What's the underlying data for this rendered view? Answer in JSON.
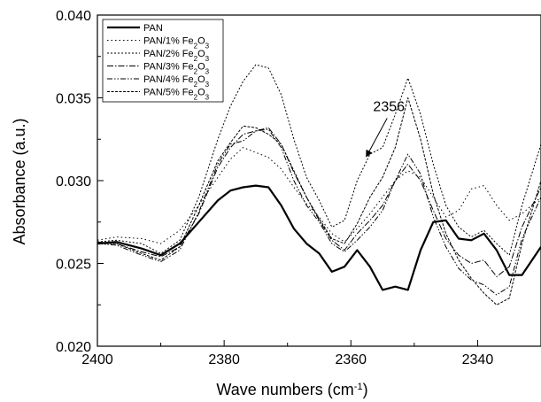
{
  "chart_data": {
    "type": "line",
    "title": "",
    "xlabel": "Wave numbers (cm",
    "xlabel_sup": "-1",
    "xlabel_tail": ")",
    "ylabel": "Absorbance (a.u.)",
    "xlim": [
      2400,
      2330
    ],
    "ylim": [
      0.02,
      0.04
    ],
    "x_ticks": [
      2400,
      2380,
      2360,
      2340
    ],
    "x_tick_labels": [
      "2400",
      "2380",
      "2360",
      "2340"
    ],
    "y_ticks": [
      0.02,
      0.025,
      0.03,
      0.035,
      0.04
    ],
    "y_tick_labels": [
      "0.020",
      "0.025",
      "0.030",
      "0.035",
      "0.040"
    ],
    "grid": false,
    "legend_position": "top-left",
    "series": [
      {
        "name": "PAN",
        "label_base": "PAN",
        "label_sub": "",
        "label_mid": "",
        "label_sub2": "",
        "color": "#000000",
        "dash": "",
        "width": 2.2,
        "x": [
          2400,
          2397,
          2393,
          2390,
          2387,
          2384,
          2381,
          2379,
          2377,
          2375,
          2373,
          2371,
          2369,
          2367,
          2365,
          2363,
          2361,
          2359,
          2357,
          2355,
          2353,
          2351,
          2349,
          2347,
          2345,
          2343,
          2341,
          2339,
          2337,
          2335,
          2333,
          2330
        ],
        "y": [
          0.0262,
          0.0263,
          0.0259,
          0.0255,
          0.0262,
          0.0275,
          0.0288,
          0.0294,
          0.0296,
          0.0297,
          0.0296,
          0.0285,
          0.0271,
          0.0262,
          0.0256,
          0.0245,
          0.0248,
          0.0258,
          0.0248,
          0.0234,
          0.0236,
          0.0234,
          0.0258,
          0.0275,
          0.0276,
          0.0265,
          0.0264,
          0.0268,
          0.0258,
          0.0243,
          0.0243,
          0.026
        ]
      },
      {
        "name": "PAN/1% Fe2O3",
        "label_base": "PAN/1% Fe",
        "label_sub": "2",
        "label_mid": "O",
        "label_sub2": "3",
        "color": "#000000",
        "dash": "1.5,3",
        "width": 1,
        "x": [
          2400,
          2397,
          2393,
          2390,
          2387,
          2384,
          2381,
          2379,
          2377,
          2375,
          2373,
          2371,
          2369,
          2367,
          2365,
          2363,
          2361,
          2359,
          2357,
          2355,
          2353,
          2351,
          2349,
          2347,
          2345,
          2343,
          2341,
          2339,
          2337,
          2335,
          2333,
          2330
        ],
        "y": [
          0.0264,
          0.0266,
          0.0265,
          0.0262,
          0.027,
          0.0285,
          0.0302,
          0.0313,
          0.032,
          0.0317,
          0.0314,
          0.0307,
          0.0296,
          0.0286,
          0.0278,
          0.0268,
          0.0263,
          0.0271,
          0.028,
          0.029,
          0.03,
          0.0306,
          0.0302,
          0.029,
          0.0278,
          0.0282,
          0.0295,
          0.0297,
          0.0285,
          0.0276,
          0.028,
          0.029
        ]
      },
      {
        "name": "PAN/2% Fe2O3",
        "label_base": "PAN/2% Fe",
        "label_sub": "2",
        "label_mid": "O",
        "label_sub2": "3",
        "color": "#000000",
        "dash": "2,2",
        "width": 1,
        "x": [
          2400,
          2397,
          2393,
          2390,
          2387,
          2384,
          2381,
          2379,
          2377,
          2375,
          2373,
          2371,
          2369,
          2367,
          2365,
          2363,
          2361,
          2359,
          2357,
          2355,
          2353,
          2351,
          2349,
          2347,
          2345,
          2343,
          2341,
          2339,
          2337,
          2335,
          2333,
          2330
        ],
        "y": [
          0.0263,
          0.0264,
          0.0262,
          0.0256,
          0.0264,
          0.029,
          0.0325,
          0.0345,
          0.036,
          0.037,
          0.0368,
          0.0352,
          0.0325,
          0.0302,
          0.0288,
          0.0272,
          0.0276,
          0.03,
          0.0316,
          0.032,
          0.034,
          0.0362,
          0.034,
          0.031,
          0.0285,
          0.0272,
          0.0266,
          0.027,
          0.0262,
          0.0255,
          0.0285,
          0.0322
        ]
      },
      {
        "name": "PAN/3% Fe2O3",
        "label_base": "PAN/3% Fe",
        "label_sub": "2",
        "label_mid": "O",
        "label_sub2": "3",
        "color": "#000000",
        "dash": "7,2,1.5,2",
        "width": 1,
        "x": [
          2400,
          2397,
          2393,
          2390,
          2387,
          2384,
          2381,
          2379,
          2377,
          2375,
          2373,
          2371,
          2369,
          2367,
          2365,
          2363,
          2361,
          2359,
          2357,
          2355,
          2353,
          2351,
          2349,
          2347,
          2345,
          2343,
          2341,
          2339,
          2337,
          2335,
          2333,
          2330
        ],
        "y": [
          0.0263,
          0.0262,
          0.0257,
          0.0254,
          0.026,
          0.028,
          0.0308,
          0.032,
          0.0328,
          0.033,
          0.0332,
          0.0322,
          0.0305,
          0.029,
          0.0276,
          0.0264,
          0.0258,
          0.0268,
          0.0276,
          0.0285,
          0.03,
          0.031,
          0.03,
          0.0282,
          0.0265,
          0.0255,
          0.025,
          0.0252,
          0.0242,
          0.0248,
          0.0272,
          0.0296
        ]
      },
      {
        "name": "PAN/4% Fe2O3",
        "label_base": "PAN/4% Fe",
        "label_sub": "2",
        "label_mid": "O",
        "label_sub2": "3",
        "color": "#000000",
        "dash": "6,2,1.5,2,1.5,2",
        "width": 1,
        "x": [
          2400,
          2397,
          2393,
          2390,
          2387,
          2384,
          2381,
          2379,
          2377,
          2375,
          2373,
          2371,
          2369,
          2367,
          2365,
          2363,
          2361,
          2359,
          2357,
          2355,
          2353,
          2351,
          2349,
          2347,
          2345,
          2343,
          2341,
          2339,
          2337,
          2335,
          2333,
          2330
        ],
        "y": [
          0.0262,
          0.0261,
          0.0255,
          0.0251,
          0.0258,
          0.0281,
          0.031,
          0.0322,
          0.0324,
          0.033,
          0.0331,
          0.032,
          0.03,
          0.0285,
          0.0275,
          0.0262,
          0.0257,
          0.0264,
          0.0272,
          0.0282,
          0.03,
          0.0316,
          0.0304,
          0.0278,
          0.026,
          0.0247,
          0.024,
          0.0237,
          0.0231,
          0.0236,
          0.0265,
          0.029
        ]
      },
      {
        "name": "PAN/5% Fe2O3",
        "label_base": "PAN/5% Fe",
        "label_sub": "2",
        "label_mid": "O",
        "label_sub2": "3",
        "color": "#000000",
        "dash": "3,1.5",
        "width": 1,
        "x": [
          2400,
          2397,
          2393,
          2390,
          2387,
          2384,
          2381,
          2379,
          2377,
          2375,
          2373,
          2371,
          2369,
          2367,
          2365,
          2363,
          2361,
          2359,
          2357,
          2355,
          2353,
          2351,
          2349,
          2347,
          2345,
          2343,
          2341,
          2339,
          2337,
          2335,
          2333,
          2330
        ],
        "y": [
          0.0262,
          0.0262,
          0.0256,
          0.0252,
          0.026,
          0.0285,
          0.0312,
          0.0323,
          0.0333,
          0.0332,
          0.0328,
          0.0322,
          0.0306,
          0.029,
          0.0277,
          0.0265,
          0.0262,
          0.0274,
          0.029,
          0.0302,
          0.032,
          0.035,
          0.0325,
          0.0292,
          0.0268,
          0.0252,
          0.0241,
          0.0232,
          0.0225,
          0.0229,
          0.0262,
          0.03
        ]
      }
    ],
    "annotations": [
      {
        "text": "2356",
        "x": 2354,
        "y": 0.0342,
        "arrow_to": {
          "x": 2357.5,
          "y": 0.0315
        }
      }
    ]
  }
}
